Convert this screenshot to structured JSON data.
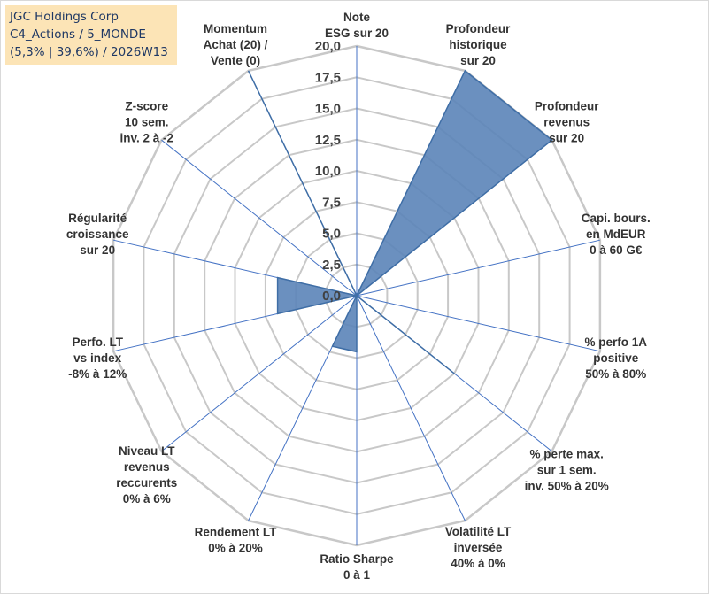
{
  "chart_data": {
    "type": "radar",
    "title_lines": [
      "JGC Holdings Corp",
      "C4_Actions / 5_MONDE",
      "(5,3% | 39,6%) / 2026W13"
    ],
    "rmin": 0,
    "rmax": 20,
    "tick_values": [
      0,
      2.5,
      5,
      7.5,
      10,
      12.5,
      15,
      17.5,
      20
    ],
    "tick_labels": [
      "0,0",
      "2,5",
      "5,0",
      "7,5",
      "10,0",
      "12,5",
      "15,0",
      "17,5",
      "20,0"
    ],
    "categories": [
      [
        "Note",
        "ESG sur 20"
      ],
      [
        "Profondeur",
        "historique",
        "sur 20"
      ],
      [
        "Profondeur",
        "revenus",
        "sur 20"
      ],
      [
        "Capi. bours.",
        "en MdEUR",
        "0 à 60 G€"
      ],
      [
        "% perfo 1A",
        "positive",
        "50% à 80%"
      ],
      [
        "% perte max.",
        "sur 1 sem.",
        "inv. 50% à 20%"
      ],
      [
        "Volatilité LT",
        "inversée",
        "40% à 0%"
      ],
      [
        "Ratio Sharpe",
        "0 à 1"
      ],
      [
        "Rendement LT",
        "0% à 20%"
      ],
      [
        "Niveau LT",
        "revenus",
        "reccurents",
        "0% à 6%"
      ],
      [
        "Perfo. LT",
        "vs index",
        "-8% à 12%"
      ],
      [
        "Régularité",
        "croissance",
        "sur 20"
      ],
      [
        "Z-score",
        "10 sem.",
        "inv. 2 à -2"
      ],
      [
        "Momentum",
        "Achat (20) /",
        "Vente (0)"
      ]
    ],
    "series": [
      {
        "name": "JGC Holdings Corp",
        "color": "#5b84b8",
        "values": [
          0,
          20,
          20,
          0,
          0,
          10,
          0,
          4.5,
          4.5,
          0,
          6.5,
          6.5,
          0,
          20
        ]
      }
    ],
    "grid_color": "#c8c8c8",
    "spoke_color": "#4472c4",
    "title_bg": "#fce4b6",
    "title_color": "#1f3864"
  }
}
